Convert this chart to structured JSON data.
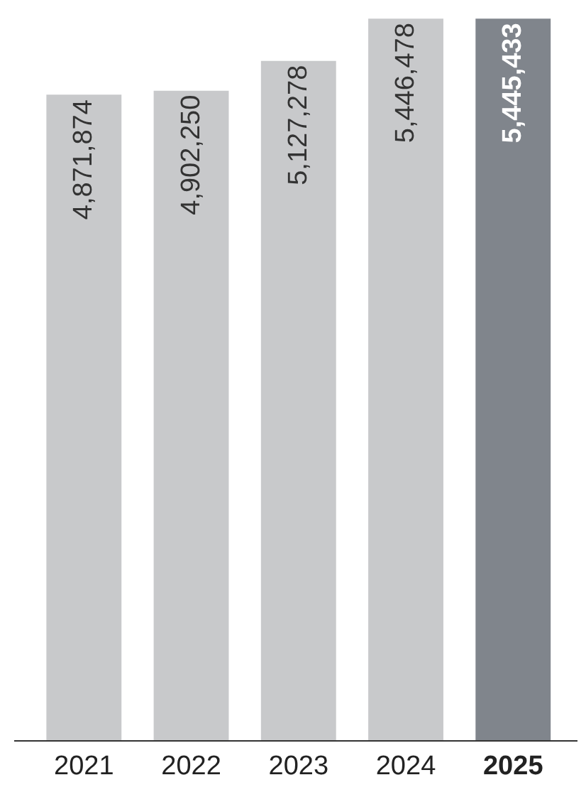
{
  "chart_data": {
    "type": "bar",
    "categories": [
      "2021",
      "2022",
      "2023",
      "2024",
      "2025"
    ],
    "values": [
      4871874,
      4902250,
      5127278,
      5446478,
      5445433
    ],
    "colors": [
      "#c8c9cb",
      "#c8c9cb",
      "#c8c9cb",
      "#c8c9cb",
      "#80858c"
    ],
    "value_labels": [
      "4,871,874",
      "4,902,250",
      "5,127,278",
      "5,446,478",
      "5,445,433"
    ],
    "legend": false
  }
}
